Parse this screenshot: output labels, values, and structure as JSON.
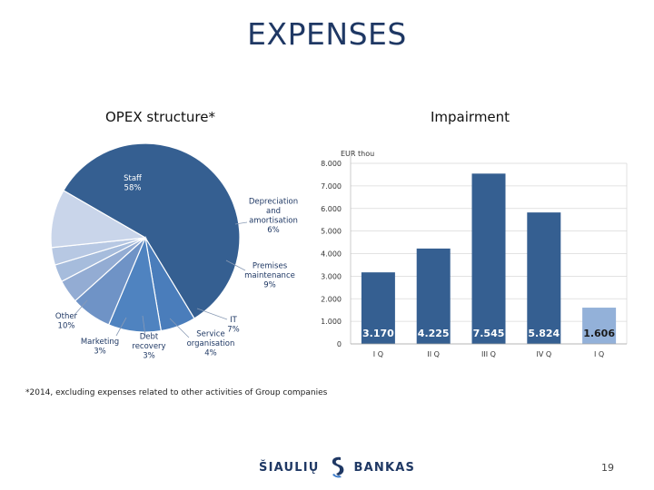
{
  "page": {
    "title": "EXPENSES",
    "footnote": "*2014, excluding expenses related to other activities of Group companies",
    "page_number": "19",
    "logo": {
      "left_word": "ŠIAULIŲ",
      "right_word": "BANKAS",
      "mark_icon": "s-logo-icon"
    }
  },
  "colors": {
    "staff": "#355f91",
    "depreciation": "#4a7dbb",
    "premises": "#4f83c0",
    "it": "#6f93c6",
    "service": "#93acd3",
    "debt": "#a6bcdc",
    "marketing": "#b7c8e3",
    "other": "#c9d5ea",
    "bar_main": "#355f91",
    "bar_last": "#93b1d9"
  },
  "chart_data": [
    {
      "type": "pie",
      "title": "OPEX structure*",
      "slices": [
        {
          "label": "Staff",
          "value": 58,
          "value_label": "58%"
        },
        {
          "label": "Depreciation and amortisation",
          "value": 6,
          "value_label": "6%"
        },
        {
          "label": "Premises maintenance",
          "value": 9,
          "value_label": "9%"
        },
        {
          "label": "IT",
          "value": 7,
          "value_label": "7%"
        },
        {
          "label": "Service organisation",
          "value": 4,
          "value_label": "4%"
        },
        {
          "label": "Debt recovery",
          "value": 3,
          "value_label": "3%"
        },
        {
          "label": "Marketing",
          "value": 3,
          "value_label": "3%"
        },
        {
          "label": "Other",
          "value": 10,
          "value_label": "10%"
        }
      ]
    },
    {
      "type": "bar",
      "title": "Impairment",
      "ylabel": "EUR thou",
      "ylim": [
        0,
        8000
      ],
      "yticks": [
        0,
        1000,
        2000,
        3000,
        4000,
        5000,
        6000,
        7000,
        8000
      ],
      "ytick_labels": [
        "0",
        "1.000",
        "2.000",
        "3.000",
        "4.000",
        "5.000",
        "6.000",
        "7.000",
        "8.000"
      ],
      "grid": true,
      "categories": [
        "I Q",
        "II Q",
        "III Q",
        "IV Q",
        "I Q"
      ],
      "values": [
        3170,
        4225,
        7545,
        5824,
        1606
      ],
      "value_labels": [
        "3.170",
        "4.225",
        "7.545",
        "5.824",
        "1.606"
      ]
    }
  ]
}
